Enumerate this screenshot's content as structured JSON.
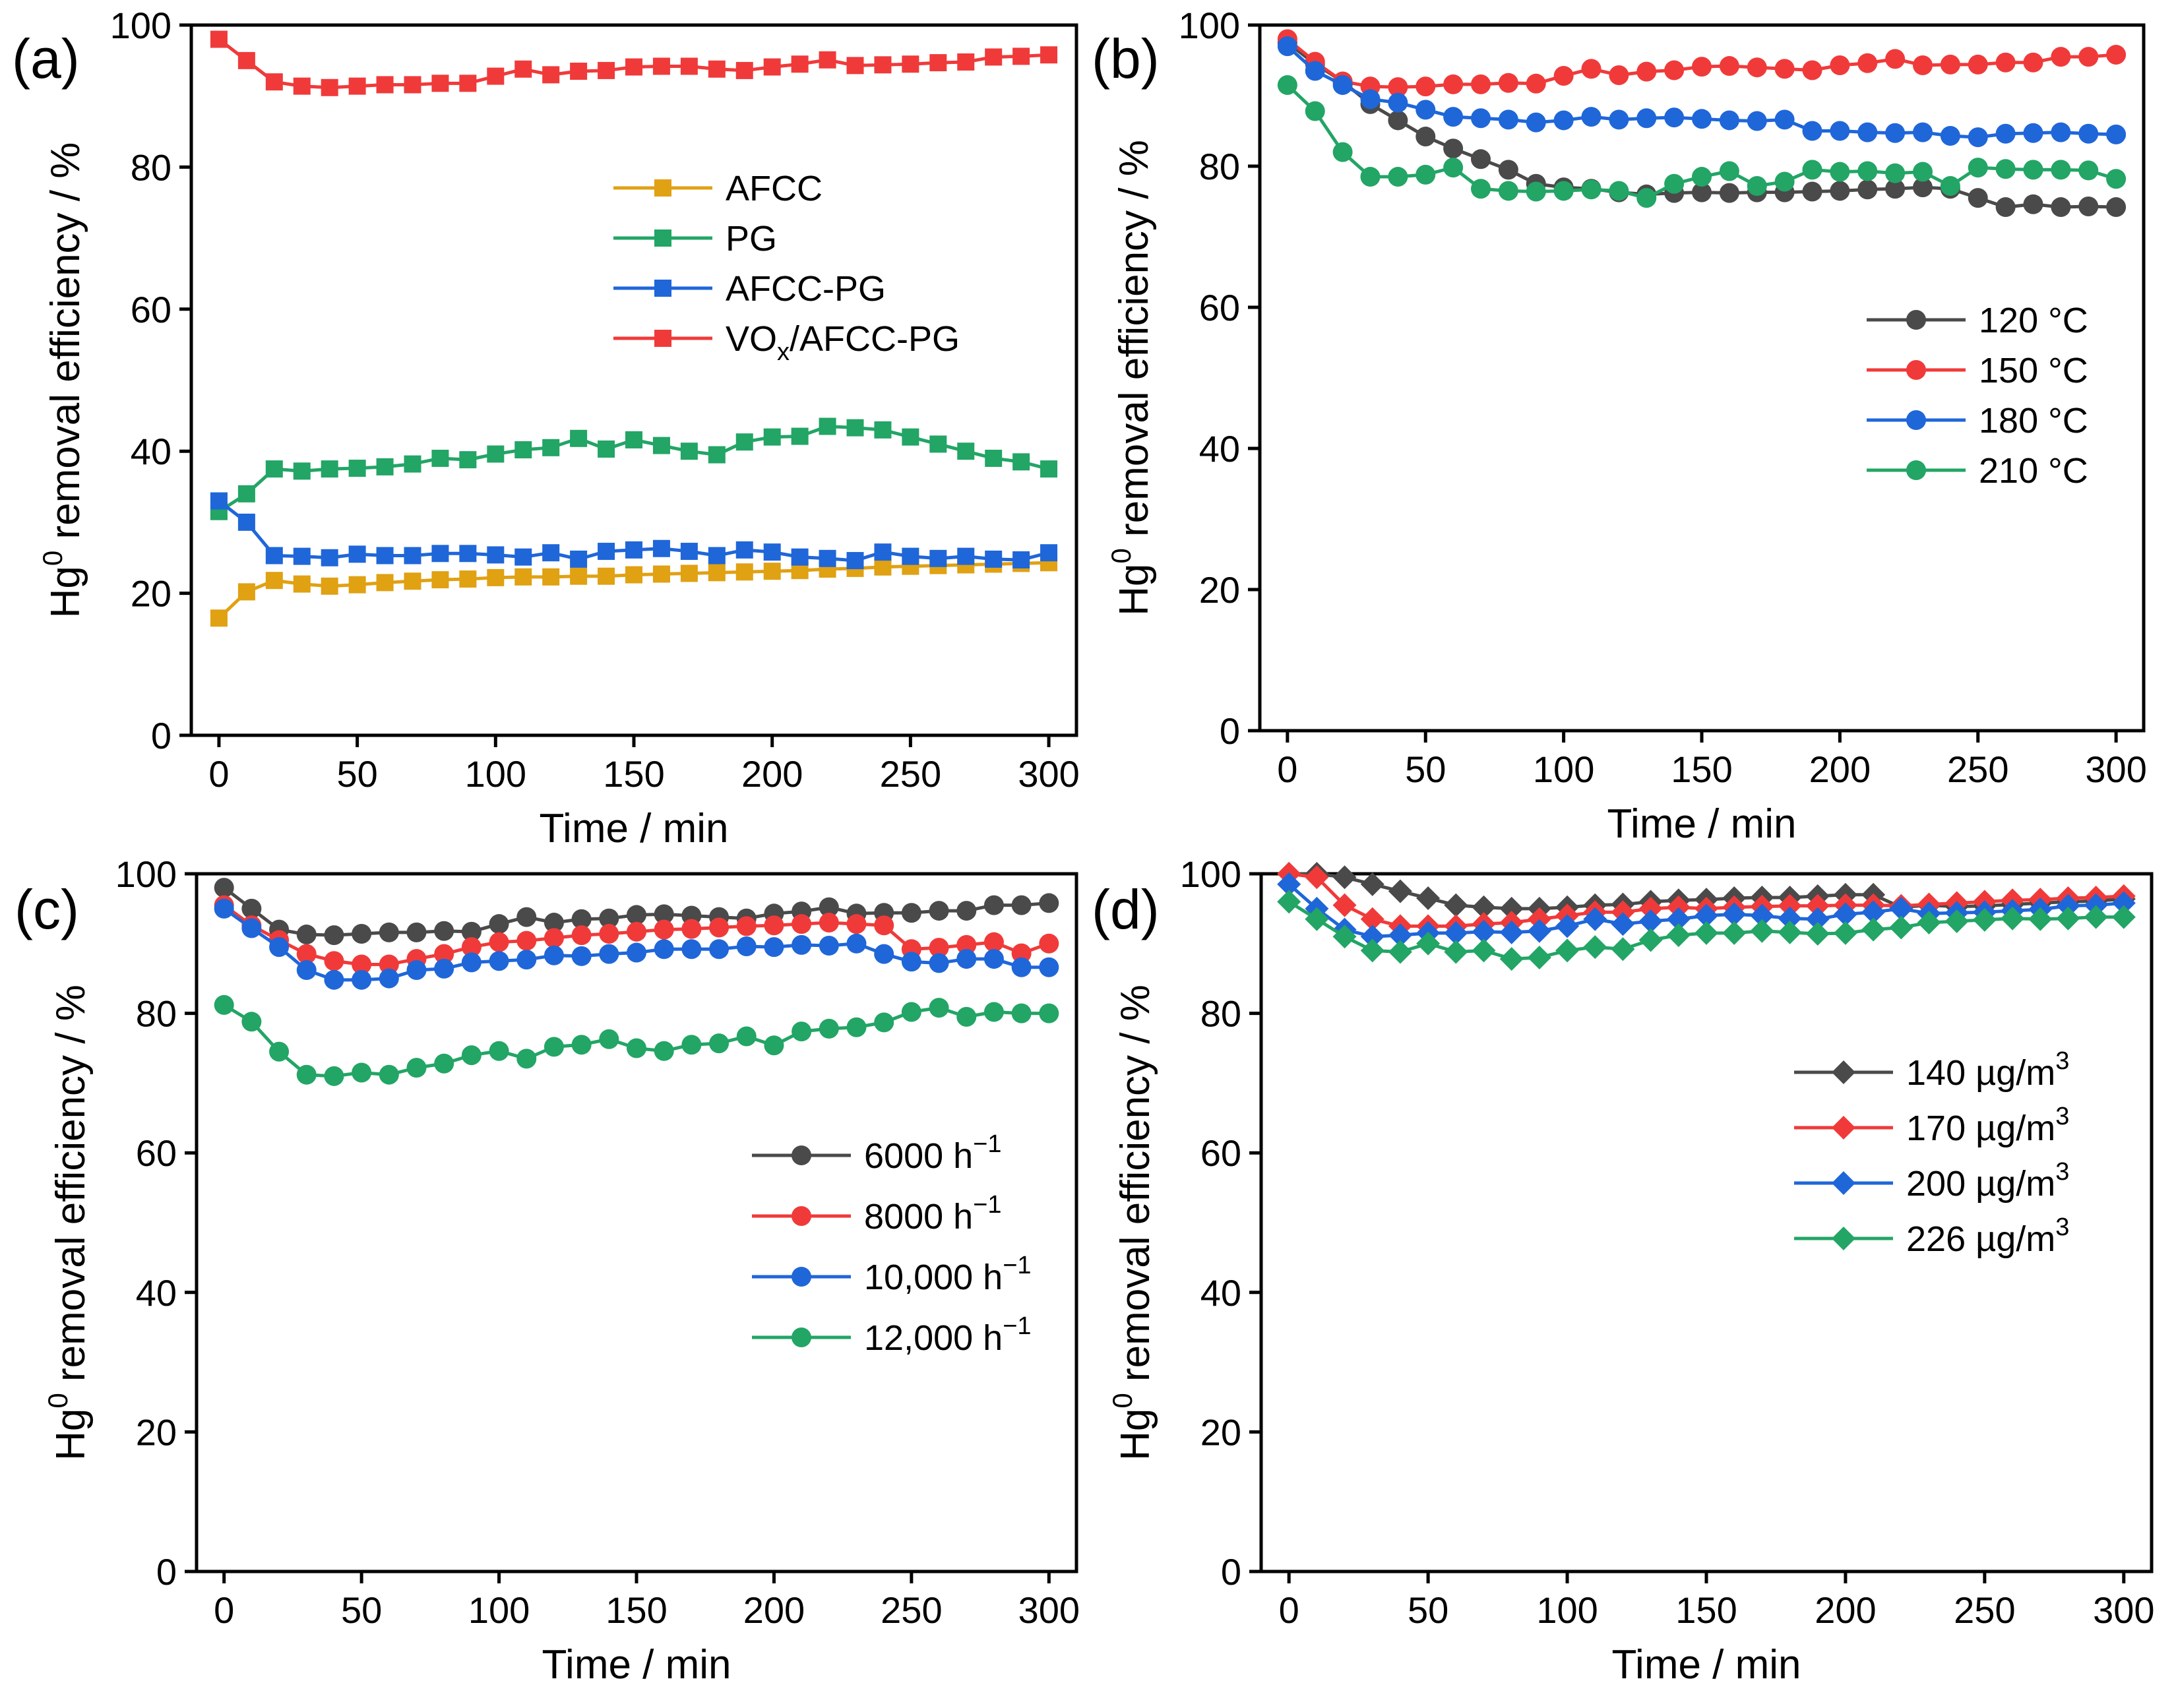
{
  "figure": {
    "panels": [
      "a",
      "b",
      "c",
      "d"
    ]
  },
  "chart_data": [
    {
      "id": "a",
      "panel_label": "(a)",
      "type": "line",
      "marker": "square",
      "xlabel": "Time / min",
      "ylabel_base": "Hg",
      "ylabel_sup": "0",
      "ylabel_rest": " removal efficiency / %",
      "xlim": [
        -10,
        310
      ],
      "ylim": [
        0,
        100
      ],
      "xticks": [
        0,
        50,
        100,
        150,
        200,
        250,
        300
      ],
      "yticks": [
        0,
        20,
        40,
        60,
        80,
        100
      ],
      "x": [
        0,
        10,
        20,
        30,
        40,
        50,
        60,
        70,
        80,
        90,
        100,
        110,
        120,
        130,
        140,
        150,
        160,
        170,
        180,
        190,
        200,
        210,
        220,
        230,
        240,
        250,
        260,
        270,
        280,
        290,
        300
      ],
      "legend_position": "upper-middle",
      "series": [
        {
          "name": "AFCC",
          "label_base": "AFCC",
          "label_sub": "",
          "label_rest": "",
          "color": "#E0A112",
          "values": [
            16.5,
            20.2,
            21.8,
            21.3,
            21.0,
            21.2,
            21.5,
            21.7,
            21.9,
            22.0,
            22.2,
            22.3,
            22.3,
            22.4,
            22.4,
            22.6,
            22.7,
            22.8,
            22.9,
            23.0,
            23.1,
            23.2,
            23.4,
            23.5,
            23.7,
            23.8,
            23.9,
            24.0,
            24.1,
            24.2,
            24.3
          ]
        },
        {
          "name": "PG",
          "label_base": "PG",
          "label_sub": "",
          "label_rest": "",
          "color": "#22A565",
          "values": [
            31.5,
            34.0,
            37.5,
            37.2,
            37.5,
            37.6,
            37.8,
            38.2,
            39.0,
            38.8,
            39.6,
            40.2,
            40.5,
            41.8,
            40.3,
            41.6,
            40.8,
            40.0,
            39.5,
            41.3,
            42.0,
            42.1,
            43.5,
            43.3,
            43.0,
            42.0,
            41.0,
            40.0,
            39.0,
            38.5,
            37.5
          ]
        },
        {
          "name": "AFCC-PG",
          "label_base": "AFCC-PG",
          "label_sub": "",
          "label_rest": "",
          "color": "#1F66D9",
          "values": [
            33.0,
            30.0,
            25.3,
            25.2,
            25.0,
            25.5,
            25.3,
            25.3,
            25.6,
            25.6,
            25.4,
            25.1,
            25.7,
            24.8,
            25.9,
            26.1,
            26.3,
            25.9,
            25.3,
            26.1,
            25.8,
            25.1,
            24.9,
            24.6,
            25.8,
            25.2,
            24.9,
            25.2,
            24.8,
            24.7,
            25.7
          ]
        },
        {
          "name": "VOx/AFCC-PG",
          "label_base": "VO",
          "label_sub": "x",
          "label_rest": "/AFCC-PG",
          "color": "#F03A3A",
          "values": [
            98.0,
            95.0,
            92.0,
            91.4,
            91.2,
            91.4,
            91.6,
            91.6,
            91.8,
            91.8,
            92.8,
            93.8,
            93.0,
            93.5,
            93.6,
            94.1,
            94.2,
            94.2,
            93.8,
            93.6,
            94.1,
            94.5,
            95.1,
            94.3,
            94.4,
            94.5,
            94.7,
            94.8,
            95.5,
            95.6,
            95.8
          ]
        }
      ]
    },
    {
      "id": "b",
      "panel_label": "(b)",
      "type": "line",
      "marker": "circle",
      "xlabel": "Time / min",
      "ylabel_base": "Hg",
      "ylabel_sup": "0",
      "ylabel_rest": " removal efficiency / %",
      "xlim": [
        -10,
        310
      ],
      "ylim": [
        0,
        100
      ],
      "xticks": [
        0,
        50,
        100,
        150,
        200,
        250,
        300
      ],
      "yticks": [
        0,
        20,
        40,
        60,
        80,
        100
      ],
      "x": [
        0,
        10,
        20,
        30,
        40,
        50,
        60,
        70,
        80,
        90,
        100,
        110,
        120,
        130,
        140,
        150,
        160,
        170,
        180,
        190,
        200,
        210,
        220,
        230,
        240,
        250,
        260,
        270,
        280,
        290,
        300
      ],
      "legend_position": "right-middle",
      "series": [
        {
          "name": "120 °C",
          "label_base": "120 °C",
          "label_sup": "",
          "color": "#4A4A4A",
          "values": [
            97.5,
            94.5,
            92.0,
            88.8,
            86.5,
            84.2,
            82.5,
            81.0,
            79.5,
            77.5,
            77.0,
            76.8,
            76.3,
            76.0,
            76.2,
            76.3,
            76.2,
            76.3,
            76.3,
            76.4,
            76.5,
            76.7,
            76.8,
            77.0,
            76.8,
            75.5,
            74.2,
            74.6,
            74.2,
            74.3,
            74.2
          ]
        },
        {
          "name": "150 °C",
          "label_base": "150 °C",
          "label_sup": "",
          "color": "#F03A3A",
          "values": [
            98.0,
            94.8,
            92.0,
            91.3,
            91.2,
            91.3,
            91.6,
            91.6,
            91.8,
            91.7,
            92.8,
            93.8,
            92.9,
            93.4,
            93.6,
            94.1,
            94.2,
            94.0,
            93.8,
            93.6,
            94.3,
            94.6,
            95.2,
            94.3,
            94.4,
            94.4,
            94.7,
            94.7,
            95.5,
            95.5,
            95.8
          ]
        },
        {
          "name": "180 °C",
          "label_base": "180 °C",
          "label_sup": "",
          "color": "#1F66D9",
          "values": [
            97.0,
            93.5,
            91.5,
            89.5,
            89.0,
            88.0,
            87.0,
            86.8,
            86.6,
            86.2,
            86.5,
            87.0,
            86.6,
            86.8,
            86.9,
            86.7,
            86.5,
            86.4,
            86.6,
            85.0,
            85.0,
            84.8,
            84.7,
            84.8,
            84.3,
            84.1,
            84.6,
            84.7,
            84.8,
            84.6,
            84.5
          ]
        },
        {
          "name": "210 °C",
          "label_base": "210 °C",
          "label_sup": "",
          "color": "#22A565",
          "values": [
            91.5,
            87.8,
            82.0,
            78.5,
            78.5,
            78.8,
            79.8,
            76.8,
            76.5,
            76.4,
            76.5,
            76.7,
            76.5,
            75.5,
            77.5,
            78.5,
            79.3,
            77.2,
            77.8,
            79.5,
            79.2,
            79.3,
            79.0,
            79.2,
            77.2,
            79.8,
            79.6,
            79.5,
            79.5,
            79.4,
            78.2
          ]
        }
      ]
    },
    {
      "id": "c",
      "panel_label": "(c)",
      "type": "line",
      "marker": "circle",
      "xlabel": "Time / min",
      "ylabel_base": "Hg",
      "ylabel_sup": "0",
      "ylabel_rest": " removal efficiency / %",
      "xlim": [
        -10,
        310
      ],
      "ylim": [
        0,
        100
      ],
      "xticks": [
        0,
        50,
        100,
        150,
        200,
        250,
        300
      ],
      "yticks": [
        0,
        20,
        40,
        60,
        80,
        100
      ],
      "x": [
        0,
        10,
        20,
        30,
        40,
        50,
        60,
        70,
        80,
        90,
        100,
        110,
        120,
        130,
        140,
        150,
        160,
        170,
        180,
        190,
        200,
        210,
        220,
        230,
        240,
        250,
        260,
        270,
        280,
        290,
        300
      ],
      "legend_position": "right-middle",
      "series": [
        {
          "name": "6000 h-1",
          "label_base": "6000 h",
          "label_sup": "−1",
          "color": "#4A4A4A",
          "values": [
            98.0,
            95.0,
            92.0,
            91.3,
            91.2,
            91.4,
            91.6,
            91.6,
            91.8,
            91.7,
            92.8,
            93.8,
            93.0,
            93.5,
            93.6,
            94.1,
            94.2,
            94.0,
            93.8,
            93.6,
            94.3,
            94.6,
            95.2,
            94.3,
            94.4,
            94.4,
            94.7,
            94.7,
            95.5,
            95.5,
            95.8
          ]
        },
        {
          "name": "8000 h-1",
          "label_base": "8000 h",
          "label_sup": "−1",
          "color": "#F03A3A",
          "values": [
            95.5,
            92.6,
            90.5,
            88.5,
            87.5,
            87.0,
            87.0,
            87.8,
            88.5,
            89.5,
            90.2,
            90.4,
            90.8,
            91.2,
            91.4,
            91.7,
            92.0,
            92.1,
            92.3,
            92.5,
            92.6,
            92.8,
            93.0,
            92.8,
            92.6,
            89.2,
            89.4,
            89.8,
            90.2,
            88.6,
            90.0
          ]
        },
        {
          "name": "10,000 h-1",
          "label_base": "10,000 h",
          "label_sup": "−1",
          "color": "#1F66D9",
          "values": [
            95.0,
            92.2,
            89.5,
            86.2,
            84.8,
            84.8,
            85.0,
            86.2,
            86.4,
            87.3,
            87.5,
            87.7,
            88.3,
            88.2,
            88.5,
            88.7,
            89.2,
            89.2,
            89.2,
            89.6,
            89.5,
            89.8,
            89.7,
            90.0,
            88.5,
            87.4,
            87.2,
            87.8,
            87.8,
            86.6,
            86.6
          ]
        },
        {
          "name": "12,000 h-1",
          "label_base": "12,000 h",
          "label_sup": "−1",
          "color": "#22A565",
          "values": [
            81.2,
            78.8,
            74.5,
            71.2,
            71.0,
            71.5,
            71.2,
            72.2,
            72.8,
            74.0,
            74.6,
            73.5,
            75.2,
            75.5,
            76.3,
            75.0,
            74.6,
            75.5,
            75.7,
            76.7,
            75.4,
            77.4,
            77.8,
            78.0,
            78.7,
            80.2,
            80.8,
            79.5,
            80.2,
            80.0,
            80.0
          ]
        }
      ]
    },
    {
      "id": "d",
      "panel_label": "(d)",
      "type": "line",
      "marker": "diamond",
      "xlabel": "Time / min",
      "ylabel_base": "Hg",
      "ylabel_sup": "0",
      "ylabel_rest": " removal efficiency / %",
      "xlim": [
        -10,
        310
      ],
      "ylim": [
        0,
        100
      ],
      "xticks": [
        0,
        50,
        100,
        150,
        200,
        250,
        300
      ],
      "yticks": [
        0,
        20,
        40,
        60,
        80,
        100
      ],
      "x": [
        0,
        10,
        20,
        30,
        40,
        50,
        60,
        70,
        80,
        90,
        100,
        110,
        120,
        130,
        140,
        150,
        160,
        170,
        180,
        190,
        200,
        210,
        220,
        230,
        240,
        250,
        260,
        270,
        280,
        290,
        300
      ],
      "legend_position": "right-middle",
      "series": [
        {
          "name": "140 µg/m3",
          "label_base": "140 µg/m",
          "label_sup": "3",
          "color": "#4A4A4A",
          "values": [
            100.0,
            100.0,
            99.5,
            98.5,
            97.5,
            96.5,
            95.5,
            95.2,
            95.0,
            95.0,
            95.2,
            95.5,
            95.6,
            96.0,
            96.2,
            96.3,
            96.5,
            96.6,
            96.6,
            96.8,
            97.0,
            97.0,
            95.2,
            95.5,
            95.3,
            95.4,
            95.6,
            95.8,
            96.0,
            96.1,
            96.4
          ]
        },
        {
          "name": "170 µg/m3",
          "label_base": "170 µg/m",
          "label_sup": "3",
          "color": "#F03A3A",
          "values": [
            100.0,
            99.5,
            95.5,
            93.5,
            92.5,
            92.5,
            92.5,
            92.8,
            93.0,
            93.5,
            94.0,
            94.5,
            94.5,
            95.0,
            95.2,
            95.0,
            95.2,
            95.3,
            95.4,
            95.4,
            95.5,
            95.5,
            95.4,
            95.6,
            95.8,
            96.0,
            96.2,
            96.3,
            96.5,
            96.6,
            96.8
          ]
        },
        {
          "name": "200 µg/m3",
          "label_base": "200 µg/m",
          "label_sup": "3",
          "color": "#1F66D9",
          "values": [
            98.5,
            95.0,
            92.0,
            91.0,
            91.2,
            91.5,
            91.5,
            91.7,
            91.6,
            91.8,
            92.5,
            93.5,
            92.8,
            93.2,
            93.5,
            94.0,
            94.2,
            94.0,
            93.6,
            93.5,
            94.2,
            94.5,
            95.0,
            94.3,
            94.4,
            94.5,
            94.7,
            94.9,
            95.4,
            95.5,
            95.8
          ]
        },
        {
          "name": "226 µg/m3",
          "label_base": "226 µg/m",
          "label_sup": "3",
          "color": "#22A565",
          "values": [
            96.0,
            93.5,
            91.0,
            89.0,
            88.8,
            90.0,
            88.8,
            89.0,
            87.8,
            88.0,
            89.0,
            89.5,
            89.2,
            90.5,
            91.2,
            91.5,
            91.5,
            91.8,
            91.6,
            91.4,
            91.5,
            92.0,
            92.3,
            93.0,
            93.2,
            93.4,
            93.6,
            93.5,
            93.6,
            93.8,
            93.8
          ]
        }
      ]
    }
  ]
}
